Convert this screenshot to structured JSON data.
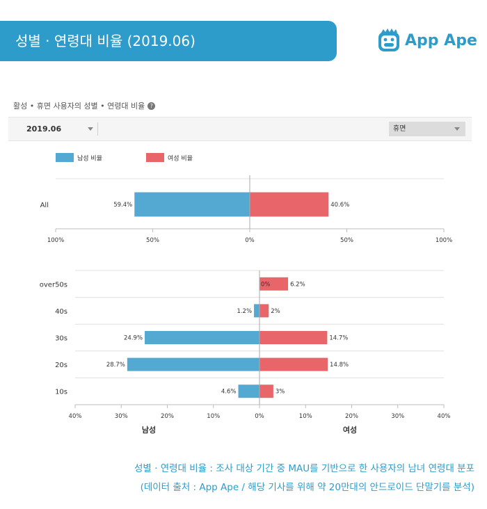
{
  "banner": {
    "title": "성별 · 연령대 비율 (2019.06)"
  },
  "logo": {
    "text": "App Ape"
  },
  "subtitle": "활성 • 휴면 사용자의 성별 • 연령대 비율",
  "filters": {
    "date": "2019.06",
    "status": "휴면"
  },
  "colors": {
    "male": "#54a9d2",
    "female": "#e8656a",
    "accent": "#2e9ccb"
  },
  "chart_data": [
    {
      "type": "bar",
      "orientation": "horizontal-diverging",
      "legend": [
        "남성 비율",
        "여성 비율"
      ],
      "categories": [
        "All"
      ],
      "series": [
        {
          "name": "남성 비율",
          "values": [
            59.4
          ]
        },
        {
          "name": "여성 비율",
          "values": [
            40.6
          ]
        }
      ],
      "labels": {
        "male": [
          "59.4%"
        ],
        "female": [
          "40.6%"
        ]
      },
      "xlim": [
        -100,
        100
      ],
      "ticks": [
        "100%",
        "50%",
        "0%",
        "50%",
        "100%"
      ]
    },
    {
      "type": "bar",
      "orientation": "horizontal-diverging",
      "categories": [
        "over50s",
        "40s",
        "30s",
        "20s",
        "10s"
      ],
      "series": [
        {
          "name": "남성",
          "values": [
            0,
            1.2,
            24.9,
            28.7,
            4.6
          ]
        },
        {
          "name": "여성",
          "values": [
            6.2,
            2,
            14.7,
            14.8,
            3
          ]
        }
      ],
      "labels": {
        "male": [
          "0%",
          "1.2%",
          "24.9%",
          "28.7%",
          "4.6%"
        ],
        "female": [
          "6.2%",
          "2%",
          "14.7%",
          "14.8%",
          "3%"
        ]
      },
      "xlim": [
        -40,
        40
      ],
      "ticks": [
        "40%",
        "30%",
        "20%",
        "10%",
        "0%",
        "10%",
        "20%",
        "30%",
        "40%"
      ],
      "xlabel_left": "남성",
      "xlabel_right": "여성"
    }
  ],
  "caption": [
    "성별 · 연령대 비율 : 조사 대상 기간 중 MAU를 기반으로 한 사용자의 남녀 연령대 분포",
    "(데이터 출처 : App Ape / 해당 기사를 위해 약 20만대의 안드로이드 단말기를 분석)"
  ]
}
